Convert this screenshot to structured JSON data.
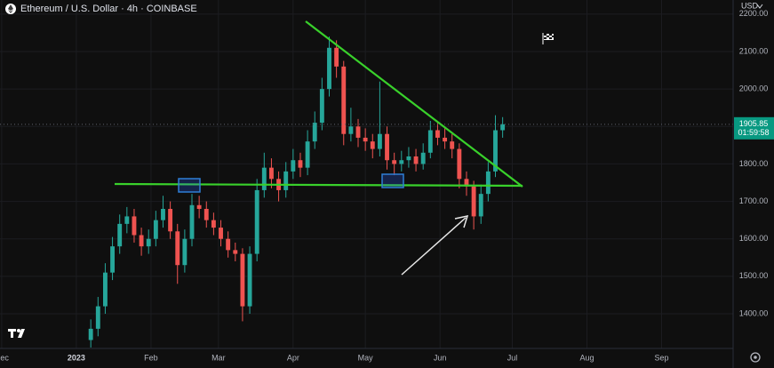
{
  "chart_data": {
    "type": "candlestick",
    "title": "Ethereum / U.S. Dollar · 4h · COINBASE",
    "y_axis_label": "USD",
    "countdown": "01:59:58",
    "up_color": "#26a69a",
    "down_color": "#ef5350",
    "grid": true,
    "xlim": [
      -31.7,
      272.7
    ],
    "xticks": [
      {
        "value": -31,
        "label": "Dec"
      },
      {
        "value": 0,
        "label": "2023"
      },
      {
        "value": 31,
        "label": "Feb"
      },
      {
        "value": 59,
        "label": "Mar"
      },
      {
        "value": 90,
        "label": "Apr"
      },
      {
        "value": 120,
        "label": "May"
      },
      {
        "value": 151,
        "label": "Jun"
      },
      {
        "value": 181,
        "label": "Jul"
      },
      {
        "value": 212,
        "label": "Aug"
      },
      {
        "value": 243,
        "label": "Sep"
      }
    ],
    "ylim": [
      1307.5,
      2237.6
    ],
    "yticks": [
      {
        "value": 1400,
        "label": "1400.00"
      },
      {
        "value": 1500,
        "label": "1500.00"
      },
      {
        "value": 1600,
        "label": "1600.00"
      },
      {
        "value": 1700,
        "label": "1700.00"
      },
      {
        "value": 1800,
        "label": "1800.00"
      },
      {
        "value": 1900,
        "label": "1900.00"
      },
      {
        "value": 2000,
        "label": "2000.00"
      },
      {
        "value": 2100,
        "label": "2100.00"
      },
      {
        "value": 2200,
        "label": "2200.00"
      }
    ],
    "x": [
      6,
      9,
      12,
      15,
      18,
      21,
      24,
      27,
      30,
      33,
      36,
      39,
      42,
      45,
      48,
      51,
      54,
      57,
      60,
      63,
      66,
      69,
      72,
      75,
      78,
      81,
      84,
      87,
      90,
      93,
      96,
      99,
      102,
      105,
      108,
      111,
      114,
      117,
      120,
      123,
      126,
      129,
      132,
      135,
      138,
      141,
      144,
      147,
      150,
      153,
      156,
      159,
      162,
      165,
      168,
      171,
      174,
      177
    ],
    "open": [
      1330,
      1360,
      1420,
      1510,
      1580,
      1640,
      1660,
      1610,
      1580,
      1600,
      1650,
      1680,
      1620,
      1530,
      1600,
      1690,
      1680,
      1650,
      1630,
      1600,
      1570,
      1560,
      1420,
      1560,
      1730,
      1790,
      1760,
      1730,
      1780,
      1810,
      1790,
      1860,
      1910,
      2000,
      2110,
      2060,
      1880,
      1900,
      1870,
      1860,
      1840,
      1880,
      1810,
      1800,
      1810,
      1820,
      1800,
      1830,
      1890,
      1870,
      1860,
      1840,
      1760,
      1740,
      1660,
      1720,
      1780,
      1890
    ],
    "high": [
      1385,
      1445,
      1535,
      1605,
      1665,
      1685,
      1680,
      1630,
      1625,
      1675,
      1715,
      1700,
      1640,
      1625,
      1720,
      1715,
      1700,
      1670,
      1650,
      1620,
      1590,
      1575,
      1580,
      1760,
      1830,
      1815,
      1780,
      1805,
      1840,
      1830,
      1890,
      1940,
      2030,
      2140,
      2130,
      2075,
      1950,
      1920,
      1895,
      1880,
      2020,
      1900,
      1830,
      1835,
      1845,
      1840,
      1855,
      1915,
      1910,
      1895,
      1880,
      1855,
      1780,
      1755,
      1745,
      1805,
      1930,
      1925
    ],
    "low": [
      1310,
      1340,
      1400,
      1490,
      1560,
      1615,
      1590,
      1555,
      1560,
      1580,
      1630,
      1600,
      1480,
      1510,
      1580,
      1655,
      1630,
      1610,
      1580,
      1550,
      1540,
      1380,
      1400,
      1540,
      1710,
      1735,
      1700,
      1710,
      1760,
      1765,
      1770,
      1840,
      1890,
      1980,
      2030,
      1850,
      1860,
      1845,
      1835,
      1815,
      1820,
      1785,
      1770,
      1780,
      1790,
      1780,
      1785,
      1815,
      1850,
      1840,
      1815,
      1735,
      1715,
      1625,
      1640,
      1700,
      1765,
      1870
    ],
    "close": [
      1360,
      1420,
      1510,
      1580,
      1640,
      1660,
      1610,
      1580,
      1600,
      1650,
      1680,
      1620,
      1530,
      1600,
      1690,
      1680,
      1650,
      1630,
      1600,
      1570,
      1560,
      1420,
      1560,
      1730,
      1790,
      1760,
      1730,
      1780,
      1810,
      1790,
      1860,
      1910,
      2000,
      2110,
      2060,
      1880,
      1900,
      1870,
      1860,
      1840,
      1880,
      1810,
      1800,
      1810,
      1820,
      1800,
      1830,
      1890,
      1870,
      1860,
      1840,
      1760,
      1740,
      1660,
      1720,
      1780,
      1890,
      1905.85
    ]
  }
}
